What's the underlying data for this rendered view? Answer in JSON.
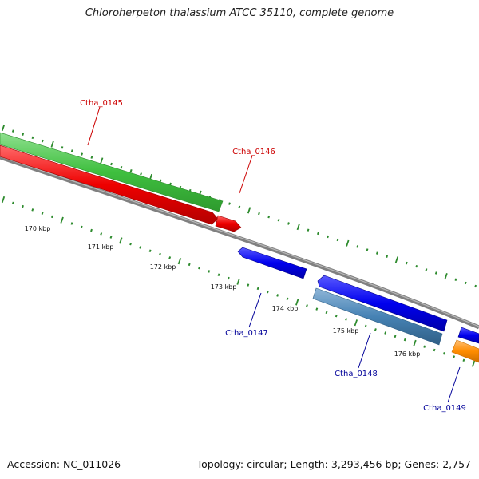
{
  "title": "Chloroherpeton thalassium ATCC 35110, complete genome",
  "footer": {
    "accession": "Accession: NC_011026",
    "summary": "Topology: circular; Length: 3,293,456 bp; Genes: 2,757"
  },
  "ruler_labels": [
    "170 kbp",
    "171 kbp",
    "172 kbp",
    "173 kbp",
    "174 kbp",
    "175 kbp",
    "176 kbp"
  ],
  "genes": [
    {
      "label": "Ctha_0145",
      "color": "#cc0000"
    },
    {
      "label": "Ctha_0146",
      "color": "#cc0000"
    },
    {
      "label": "Ctha_0147",
      "color": "#000099"
    },
    {
      "label": "Ctha_0148",
      "color": "#000099"
    },
    {
      "label": "Ctha_0149",
      "color": "#000099"
    }
  ],
  "feature_colors": {
    "green": "#3fbf3f",
    "red": "#ee0000",
    "blue": "#0000ee",
    "steel": "#4682b4",
    "orange": "#ff8c00",
    "backbone": "#808080",
    "ticks": "#2e8b2e"
  }
}
